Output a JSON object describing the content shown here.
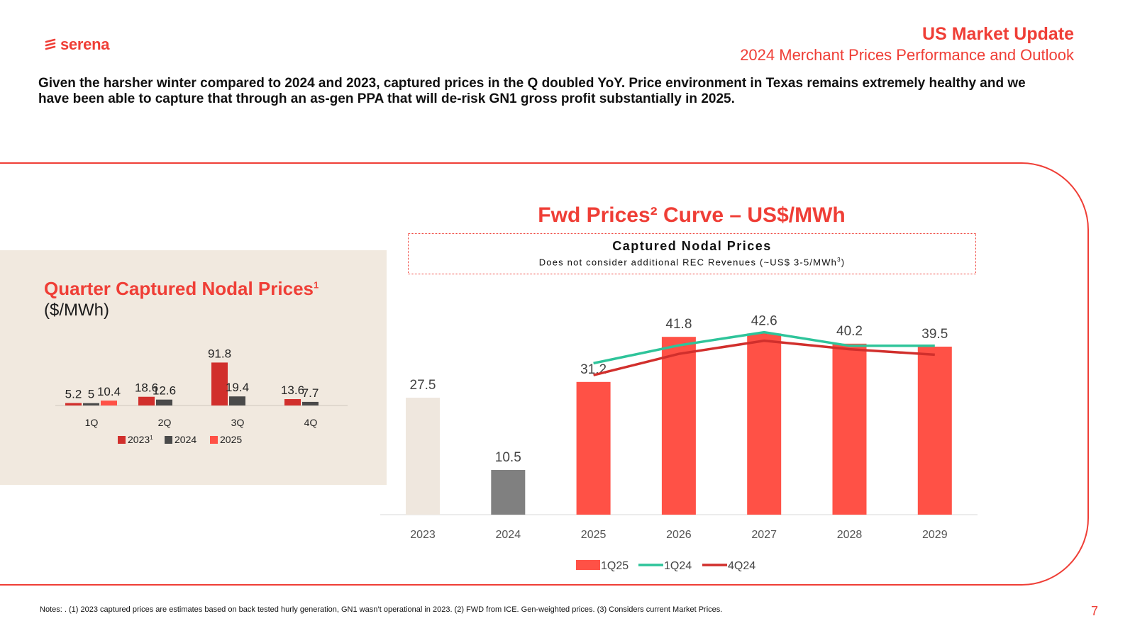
{
  "brand": {
    "name": "serena",
    "color": "#ef3e36"
  },
  "header": {
    "title": "US Market Update",
    "subtitle": "2024 Merchant Prices Performance and Outlook"
  },
  "intro": "Given the harsher winter compared to 2024 and 2023, captured prices in the Q doubled YoY. Price environment in Texas remains extremely healthy and we have been able to capture that through an as-gen PPA that will de-risk GN1 gross profit substantially in 2025.",
  "left_panel": {
    "title": "Quarter Captured Nodal Prices",
    "title_sup": "1",
    "unit": "($/MWh)"
  },
  "right_panel": {
    "title": "Fwd Prices² Curve – US$/MWh",
    "box_title": "Captured Nodal Prices",
    "box_subtitle": "Does not consider additional REC Revenues (~US$ 3-5/MWh",
    "box_subtitle_sup": "3",
    "box_subtitle_end": ")"
  },
  "chart_data": [
    {
      "type": "bar",
      "title": "Quarter Captured Nodal Prices",
      "ylabel": "($/MWh)",
      "categories": [
        "1Q",
        "2Q",
        "3Q",
        "4Q"
      ],
      "series": [
        {
          "name": "2023",
          "name_sup": "1",
          "color": "#d12f2c",
          "values": [
            5.2,
            18.6,
            91.8,
            13.6
          ]
        },
        {
          "name": "2024",
          "color": "#4a4a4a",
          "values": [
            5.0,
            12.6,
            19.4,
            7.7
          ]
        },
        {
          "name": "2025",
          "color": "#ff5146",
          "values": [
            10.4,
            null,
            null,
            null
          ]
        }
      ],
      "ylim": [
        0,
        100
      ],
      "legend": "bottom"
    },
    {
      "type": "bar",
      "title": "Fwd Prices Curve – US$/MWh",
      "categories": [
        "2023",
        "2024",
        "2025",
        "2026",
        "2027",
        "2028",
        "2029"
      ],
      "bars": {
        "name": "1Q25",
        "values": [
          27.5,
          10.5,
          31.2,
          41.8,
          42.6,
          40.2,
          39.5
        ],
        "colors": [
          "#efe7de",
          "#808080",
          "#ff5146",
          "#ff5146",
          "#ff5146",
          "#ff5146",
          "#ff5146"
        ]
      },
      "lines": [
        {
          "name": "1Q24",
          "color": "#2ec49a",
          "values": [
            null,
            null,
            35.6,
            39.8,
            42.9,
            39.7,
            39.7
          ]
        },
        {
          "name": "4Q24",
          "color": "#d12f2c",
          "values": [
            null,
            null,
            32.8,
            37.8,
            40.9,
            38.9,
            37.6
          ]
        }
      ],
      "ylim": [
        0,
        50
      ],
      "legend": "bottom"
    }
  ],
  "notes": "Notes: . (1) 2023 captured prices are estimates based on back tested hurly generation, GN1 wasn’t operational in 2023. (2) FWD from ICE. Gen-weighted prices. (3) Considers current Market Prices.",
  "page_number": "7"
}
